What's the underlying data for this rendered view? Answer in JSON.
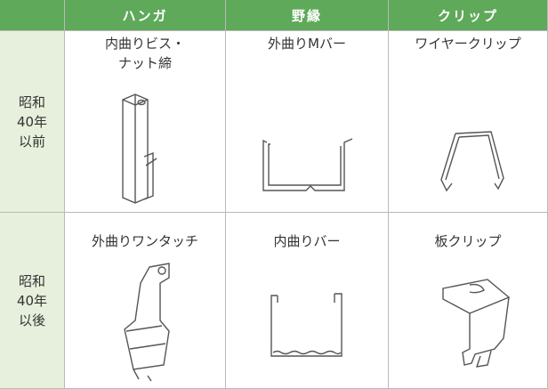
{
  "table": {
    "header": [
      "ハンガ",
      "野縁",
      "クリップ"
    ],
    "rows": [
      {
        "label": [
          "昭和",
          "40年",
          "以前"
        ],
        "cells": [
          [
            "内曲りビス・",
            "ナット締"
          ],
          [
            "外曲りMバー"
          ],
          [
            "ワイヤークリップ"
          ]
        ]
      },
      {
        "label": [
          "昭和",
          "40年",
          "以後"
        ],
        "cells": [
          [
            "外曲りワンタッチ"
          ],
          [
            "内曲りバー"
          ],
          [
            "板クリップ"
          ]
        ]
      }
    ]
  }
}
